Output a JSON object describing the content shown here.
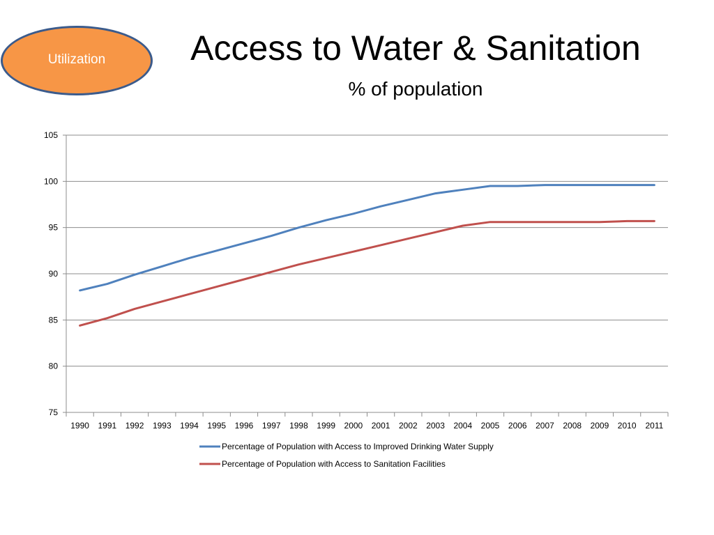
{
  "badge": {
    "label": "Utilization",
    "color": "#f79646",
    "border_color": "#3b5b8c"
  },
  "header": {
    "title": "Access to Water & Sanitation",
    "subtitle": "% of population"
  },
  "chart_data": {
    "type": "line",
    "title": "",
    "xlabel": "",
    "ylabel": "",
    "ylim": [
      75,
      105
    ],
    "yticks": [
      75,
      80,
      85,
      90,
      95,
      100,
      105
    ],
    "grid": true,
    "legend_position": "bottom",
    "categories": [
      "1990",
      "1991",
      "1992",
      "1993",
      "1994",
      "1995",
      "1996",
      "1997",
      "1998",
      "1999",
      "2000",
      "2001",
      "2002",
      "2003",
      "2004",
      "2005",
      "2006",
      "2007",
      "2008",
      "2009",
      "2010",
      "2011"
    ],
    "series": [
      {
        "name": "Percentage of Population with Access to Improved Drinking Water Supply",
        "color": "#4f81bd",
        "values": [
          88.2,
          88.9,
          89.9,
          90.8,
          91.7,
          92.5,
          93.3,
          94.1,
          95.0,
          95.8,
          96.5,
          97.3,
          98.0,
          98.7,
          99.1,
          99.5,
          99.5,
          99.6,
          99.6,
          99.6,
          99.6,
          99.6
        ]
      },
      {
        "name": "Percentage of Population with Access to Sanitation Facilities",
        "color": "#c0504d",
        "values": [
          84.4,
          85.2,
          86.2,
          87.0,
          87.8,
          88.6,
          89.4,
          90.2,
          91.0,
          91.7,
          92.4,
          93.1,
          93.8,
          94.5,
          95.2,
          95.6,
          95.6,
          95.6,
          95.6,
          95.6,
          95.7,
          95.7
        ]
      }
    ]
  }
}
